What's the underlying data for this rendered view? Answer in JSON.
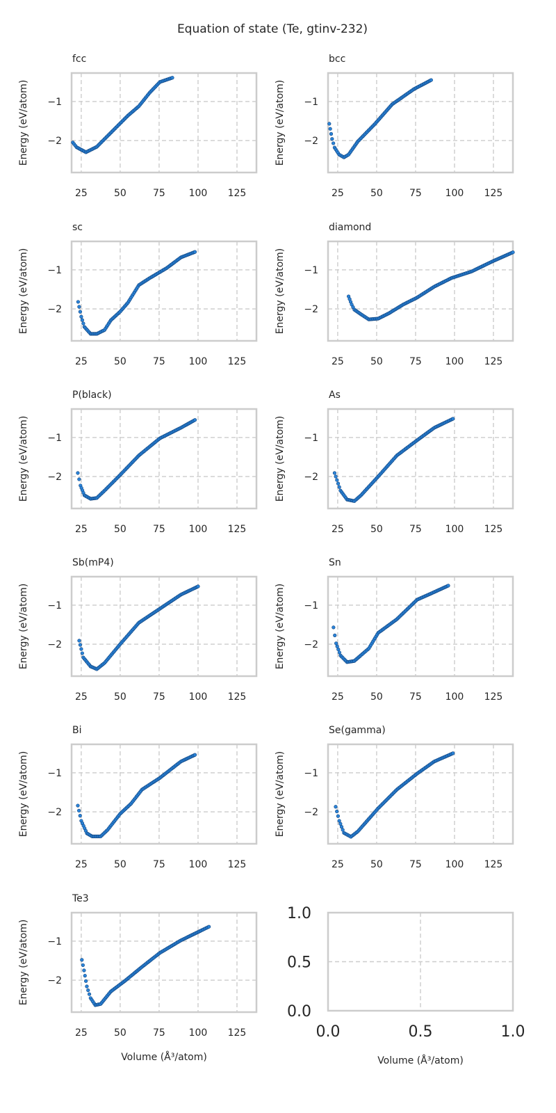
{
  "chart_data": {
    "type": "scatter",
    "title": "Equation of state (Te, gtinv-232)",
    "xlabel": "Volume (Å³/atom)",
    "ylabel": "Energy (eV/atom)",
    "grid": true,
    "xlim": [
      18.8,
      137.5
    ],
    "ylim": [
      -2.82,
      -0.27
    ],
    "xticks": [
      25,
      50,
      75,
      100,
      125
    ],
    "yticks": [
      -1,
      -2
    ],
    "xtick_labels": [
      "25",
      "50",
      "75",
      "100",
      "125"
    ],
    "ytick_labels": [
      "−1",
      "−2"
    ],
    "marker_color": "#2b84d8",
    "marker_edge": "#0d3f7a",
    "panels": [
      {
        "title": "fcc",
        "x": [
          19.6,
          22,
          28,
          35,
          44,
          55,
          62,
          69,
          75.5,
          83.5
        ],
        "y": [
          -2.05,
          -2.17,
          -2.3,
          -2.16,
          -1.8,
          -1.36,
          -1.12,
          -0.77,
          -0.5,
          -0.39
        ]
      },
      {
        "title": "bcc",
        "x": [
          19.6,
          21.4,
          23,
          25.9,
          29,
          32,
          38,
          49,
          60,
          74,
          85
        ],
        "y": [
          -1.57,
          -1.96,
          -2.18,
          -2.36,
          -2.43,
          -2.36,
          -2.02,
          -1.57,
          -1.07,
          -0.68,
          -0.45
        ]
      },
      {
        "title": "sc",
        "x": [
          23,
          25,
          27,
          31,
          35,
          40,
          44,
          50,
          55,
          62,
          69,
          80,
          89,
          98
        ],
        "y": [
          -1.82,
          -2.2,
          -2.46,
          -2.64,
          -2.64,
          -2.54,
          -2.29,
          -2.07,
          -1.84,
          -1.39,
          -1.21,
          -0.95,
          -0.68,
          -0.54
        ]
      },
      {
        "title": "diamond",
        "x": [
          32,
          34,
          35.7,
          40,
          45,
          51,
          58,
          67,
          76,
          87,
          98,
          111,
          125,
          137.5
        ],
        "y": [
          -1.68,
          -1.89,
          -2.02,
          -2.14,
          -2.27,
          -2.25,
          -2.11,
          -1.89,
          -1.71,
          -1.43,
          -1.21,
          -1.04,
          -0.77,
          -0.55
        ]
      },
      {
        "title": "P(black)",
        "x": [
          22.8,
          24.5,
          27,
          31,
          35,
          40,
          50,
          62,
          75.5,
          89,
          98
        ],
        "y": [
          -1.91,
          -2.23,
          -2.48,
          -2.57,
          -2.55,
          -2.36,
          -1.96,
          -1.46,
          -1.02,
          -0.75,
          -0.55
        ]
      },
      {
        "title": "As",
        "x": [
          23,
          26.8,
          31,
          35.7,
          40,
          51,
          63,
          76,
          87,
          99
        ],
        "y": [
          -1.91,
          -2.36,
          -2.59,
          -2.63,
          -2.48,
          -2.0,
          -1.46,
          -1.07,
          -0.75,
          -0.52
        ]
      },
      {
        "title": "Sb(mP4)",
        "x": [
          23.7,
          26.3,
          31,
          35,
          40,
          50,
          62,
          75.5,
          89,
          100
        ],
        "y": [
          -1.91,
          -2.34,
          -2.57,
          -2.64,
          -2.48,
          -2.0,
          -1.45,
          -1.09,
          -0.73,
          -0.52
        ]
      },
      {
        "title": "Sn",
        "x": [
          22.3,
          24,
          26.8,
          31,
          35.7,
          45,
          51,
          63,
          76,
          85,
          96
        ],
        "y": [
          -1.57,
          -1.98,
          -2.29,
          -2.46,
          -2.43,
          -2.11,
          -1.71,
          -1.36,
          -0.86,
          -0.7,
          -0.5
        ]
      },
      {
        "title": "Bi",
        "x": [
          22.8,
          25,
          28.6,
          32,
          37.5,
          42,
          50,
          57,
          64,
          75.5,
          89,
          98
        ],
        "y": [
          -1.84,
          -2.23,
          -2.55,
          -2.63,
          -2.63,
          -2.46,
          -2.05,
          -1.79,
          -1.43,
          -1.13,
          -0.71,
          -0.54
        ]
      },
      {
        "title": "Se(gamma)",
        "x": [
          23.7,
          26,
          29,
          33.5,
          38,
          51,
          63,
          76,
          87,
          99
        ],
        "y": [
          -1.87,
          -2.23,
          -2.54,
          -2.64,
          -2.5,
          -1.91,
          -1.43,
          -1.02,
          -0.71,
          -0.5
        ]
      },
      {
        "title": "Te3",
        "x": [
          25.4,
          26.8,
          28.6,
          31,
          34,
          37.5,
          44,
          53,
          64,
          75.5,
          89,
          107
        ],
        "y": [
          -1.48,
          -1.75,
          -2.16,
          -2.46,
          -2.64,
          -2.61,
          -2.29,
          -2.02,
          -1.66,
          -1.3,
          -0.98,
          -0.63
        ]
      }
    ],
    "empty_panel": {
      "xlim": [
        0,
        1
      ],
      "ylim": [
        0,
        1
      ],
      "xtick_labels": [
        "0.0",
        "0.5",
        "1.0"
      ],
      "ytick_labels": [
        "0.0",
        "0.5",
        "1.0"
      ],
      "xlabel": "Volume (Å³/atom)"
    }
  }
}
